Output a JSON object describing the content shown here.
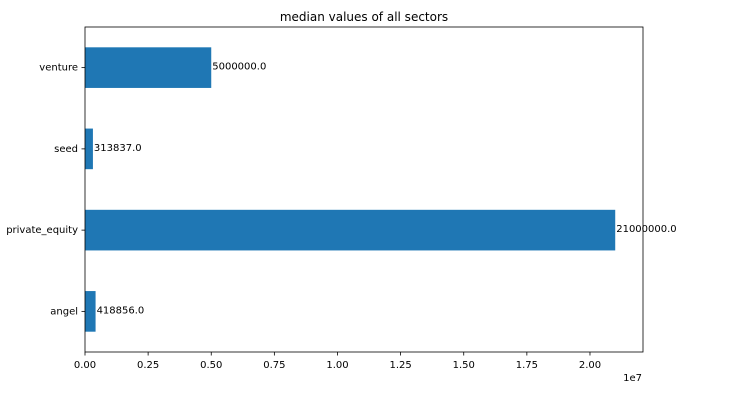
{
  "chart_data": {
    "type": "bar",
    "orientation": "horizontal",
    "title": "median values of all sectors",
    "xlabel": "",
    "ylabel": "",
    "categories": [
      "venture",
      "seed",
      "private_equity",
      "angel"
    ],
    "values": [
      5000000.0,
      313837.0,
      21000000.0,
      418856.0
    ],
    "value_labels": [
      "5000000.0",
      "313837.0",
      "21000000.0",
      "418856.0"
    ],
    "xlim": [
      0,
      22100000
    ],
    "xticks": [
      0,
      2500000,
      5000000,
      7500000,
      10000000,
      12500000,
      15000000,
      17500000,
      20000000
    ],
    "xtick_labels": [
      "0.00",
      "0.25",
      "0.50",
      "0.75",
      "1.00",
      "1.25",
      "1.50",
      "1.75",
      "2.00"
    ],
    "x_offset_label": "1e7",
    "grid": false,
    "legend": "none",
    "bar_color": "#1f77b4"
  }
}
